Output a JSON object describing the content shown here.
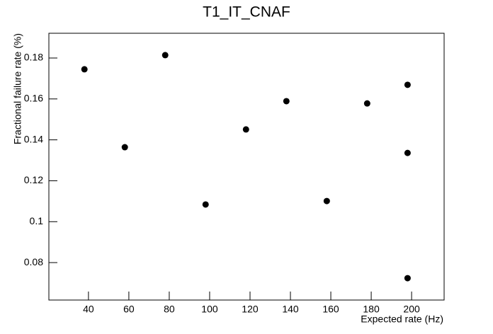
{
  "chart_data": {
    "type": "scatter",
    "title": "T1_IT_CNAF",
    "xlabel": "Expected rate (Hz)",
    "ylabel": "Fractional failure rate (%)",
    "x": [
      38,
      58,
      78,
      98,
      118,
      138,
      158,
      178,
      198,
      198,
      198
    ],
    "values": [
      0.1745,
      0.1364,
      0.1814,
      0.1084,
      0.1451,
      0.1589,
      0.1101,
      0.1578,
      0.1669,
      0.1336,
      0.0724
    ],
    "color": "#000000",
    "xlim": [
      20.4,
      216.1
    ],
    "xticks": [
      40,
      60,
      80,
      100,
      120,
      140,
      160,
      180,
      200
    ],
    "ylim": [
      0.0617,
      0.1921
    ],
    "yticks": [
      0.08,
      0.1,
      0.12,
      0.14,
      0.16,
      0.18
    ]
  }
}
